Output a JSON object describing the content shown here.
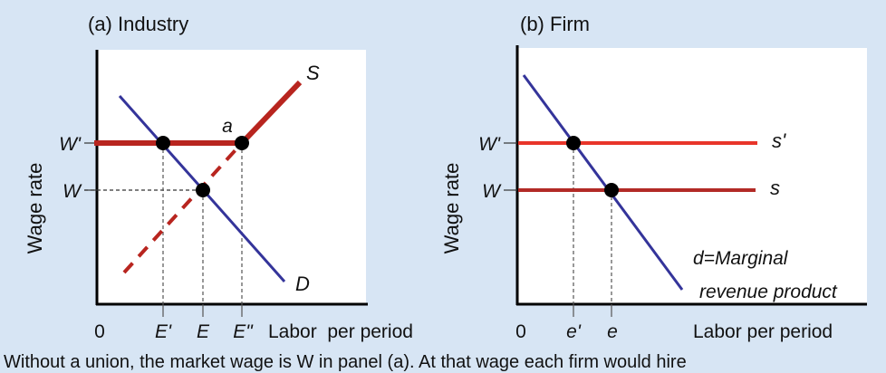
{
  "panel_a": {
    "title": "(a) Industry",
    "ylabel": "Wage rate",
    "xlabel": "Labor  per period",
    "y_ticks": [
      "W'",
      "W"
    ],
    "x_ticks": [
      "0",
      "E'",
      "E",
      "E\""
    ],
    "point_label": "a",
    "supply_label": "S",
    "demand_label": "D"
  },
  "panel_b": {
    "title": "(b) Firm",
    "ylabel": "Wage rate",
    "xlabel": "Labor per period",
    "y_ticks": [
      "W'",
      "W"
    ],
    "x_ticks": [
      "0",
      "e'",
      "e"
    ],
    "supply_high_label": "s'",
    "supply_low_label": "s",
    "demand_label_line1": "d=Marginal",
    "demand_label_line2": "revenue product"
  },
  "caption": "Without a union, the market wage is W in panel (a). At that wage each firm would hire",
  "colors": {
    "background": "#d7e5f4",
    "demand": "#34349a",
    "supply": "#b8251f",
    "supply_high": "#e8352a",
    "supply_low": "#b22a26"
  }
}
